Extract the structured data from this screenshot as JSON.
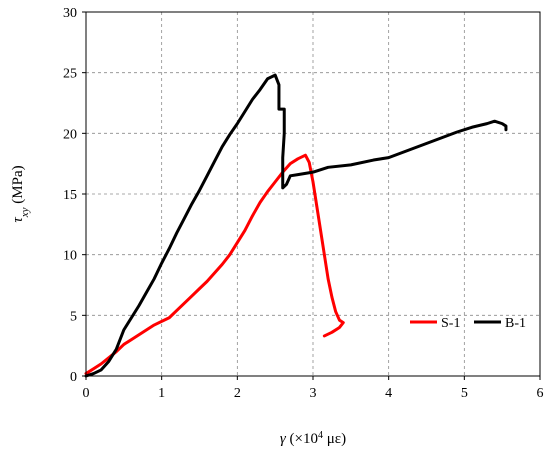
{
  "chart_data": {
    "type": "line",
    "title": "",
    "xlabel": "γ (×10⁴ με)",
    "ylabel": "τxy (MPa)",
    "xlabel_parts": {
      "symbol": "γ",
      "text_before_exp": " (×10",
      "exp": "4",
      "text_after_exp": " με)"
    },
    "ylabel_parts": {
      "symbol": "τ",
      "sub": "xy",
      "unit": " (MPa)"
    },
    "xlim": [
      0,
      6
    ],
    "ylim": [
      0,
      30
    ],
    "x_ticks": [
      "0",
      "1",
      "2",
      "3",
      "4",
      "5",
      "6"
    ],
    "y_ticks": [
      "0",
      "5",
      "10",
      "15",
      "20",
      "25",
      "30"
    ],
    "grid": true,
    "legend_position": "bottom-right inside",
    "series": [
      {
        "name": "S-1",
        "color": "#ff0000",
        "x": [
          0.0,
          0.1,
          0.2,
          0.3,
          0.4,
          0.5,
          0.6,
          0.7,
          0.8,
          0.9,
          1.0,
          1.1,
          1.2,
          1.3,
          1.4,
          1.5,
          1.6,
          1.7,
          1.8,
          1.9,
          2.0,
          2.1,
          2.2,
          2.3,
          2.4,
          2.5,
          2.6,
          2.7,
          2.8,
          2.9,
          2.95,
          3.0,
          3.05,
          3.1,
          3.15,
          3.2,
          3.25,
          3.3,
          3.35,
          3.4,
          3.35,
          3.25,
          3.15
        ],
        "y": [
          0.2,
          0.6,
          1.0,
          1.5,
          2.0,
          2.6,
          3.0,
          3.4,
          3.8,
          4.2,
          4.5,
          4.8,
          5.4,
          6.0,
          6.6,
          7.2,
          7.8,
          8.5,
          9.2,
          10.0,
          11.0,
          12.0,
          13.2,
          14.3,
          15.2,
          16.0,
          16.8,
          17.5,
          17.9,
          18.2,
          17.6,
          16.0,
          14.0,
          12.0,
          10.0,
          8.0,
          6.5,
          5.3,
          4.6,
          4.4,
          4.0,
          3.6,
          3.3
        ]
      },
      {
        "name": "B-1",
        "color": "#000000",
        "x": [
          0.0,
          0.1,
          0.2,
          0.3,
          0.4,
          0.5,
          0.6,
          0.7,
          0.8,
          0.9,
          1.0,
          1.1,
          1.2,
          1.3,
          1.4,
          1.5,
          1.6,
          1.7,
          1.8,
          1.9,
          2.0,
          2.1,
          2.2,
          2.3,
          2.4,
          2.5,
          2.55,
          2.55,
          2.62,
          2.62,
          2.6,
          2.6,
          2.65,
          2.7,
          2.8,
          3.0,
          3.2,
          3.5,
          3.8,
          4.0,
          4.3,
          4.6,
          4.9,
          5.1,
          5.3,
          5.4,
          5.5,
          5.55,
          5.55
        ],
        "y": [
          0.0,
          0.2,
          0.5,
          1.2,
          2.2,
          3.8,
          4.8,
          5.8,
          6.9,
          8.0,
          9.3,
          10.5,
          11.8,
          13.0,
          14.2,
          15.3,
          16.5,
          17.7,
          18.9,
          19.9,
          20.8,
          21.8,
          22.8,
          23.6,
          24.5,
          24.8,
          24.0,
          22.0,
          22.0,
          20.0,
          18.0,
          15.5,
          15.8,
          16.5,
          16.6,
          16.8,
          17.2,
          17.4,
          17.8,
          18.0,
          18.7,
          19.4,
          20.1,
          20.5,
          20.8,
          21.0,
          20.8,
          20.6,
          20.3
        ]
      }
    ]
  }
}
